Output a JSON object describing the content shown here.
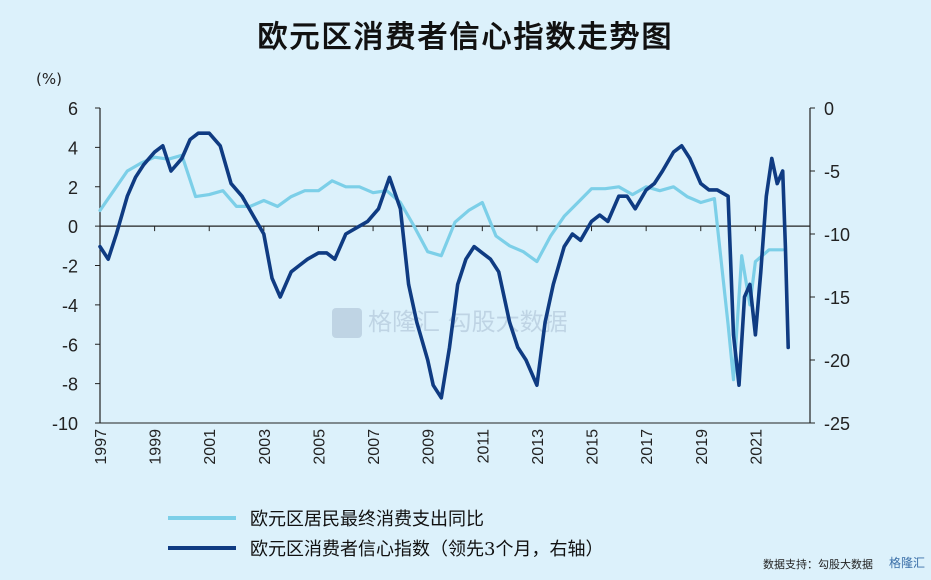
{
  "title": "欧元区消费者信心指数走势图",
  "watermark": "格隆汇   勾股大数据",
  "footer": {
    "source": "数据支持：勾股大数据",
    "corner": "格隆汇"
  },
  "chart_data": {
    "type": "line",
    "unit_left": "(%)",
    "x_ticks": [
      "1997",
      "1999",
      "2001",
      "2003",
      "2005",
      "2007",
      "2009",
      "2011",
      "2013",
      "2015",
      "2017",
      "2019",
      "2021"
    ],
    "y_left": {
      "range": [
        -10,
        6
      ],
      "ticks": [
        "6",
        "4",
        "2",
        "0",
        "-2",
        "-4",
        "-6",
        "-8",
        "-10"
      ]
    },
    "y_right": {
      "range": [
        -25,
        0
      ],
      "ticks": [
        "0",
        "-5",
        "-10",
        "-15",
        "-20",
        "-25"
      ]
    },
    "series": [
      {
        "name": "欧元区居民最终消费支出同比",
        "axis": "left",
        "color": "#7ccfe8",
        "x": [
          1997.0,
          1997.5,
          1998.0,
          1998.5,
          1999.0,
          1999.5,
          2000.0,
          2000.5,
          2001.0,
          2001.5,
          2002.0,
          2002.5,
          2003.0,
          2003.5,
          2004.0,
          2004.5,
          2005.0,
          2005.5,
          2006.0,
          2006.5,
          2007.0,
          2007.5,
          2008.0,
          2008.5,
          2009.0,
          2009.5,
          2010.0,
          2010.5,
          2011.0,
          2011.5,
          2012.0,
          2012.5,
          2013.0,
          2013.5,
          2014.0,
          2014.5,
          2015.0,
          2015.5,
          2016.0,
          2016.5,
          2017.0,
          2017.5,
          2018.0,
          2018.5,
          2019.0,
          2019.5,
          2020.0,
          2020.2,
          2020.5,
          2020.8,
          2021.0,
          2021.5,
          2022.0
        ],
        "values": [
          0.8,
          1.8,
          2.8,
          3.2,
          3.5,
          3.4,
          3.6,
          1.5,
          1.6,
          1.8,
          1.0,
          1.0,
          1.3,
          1.0,
          1.5,
          1.8,
          1.8,
          2.3,
          2.0,
          2.0,
          1.7,
          1.8,
          1.2,
          0.0,
          -1.3,
          -1.5,
          0.2,
          0.8,
          1.2,
          -0.5,
          -1.0,
          -1.3,
          -1.8,
          -0.5,
          0.5,
          1.2,
          1.9,
          1.9,
          2.0,
          1.6,
          2.0,
          1.8,
          2.0,
          1.5,
          1.2,
          1.4,
          -5.0,
          -7.8,
          -1.5,
          -4.0,
          -1.8,
          -1.2,
          -1.2
        ]
      },
      {
        "name": "欧元区消费者信心指数（领先3个月，右轴）",
        "axis": "right",
        "color": "#0f3b82",
        "x": [
          1997.0,
          1997.3,
          1997.6,
          1998.0,
          1998.3,
          1998.6,
          1999.0,
          1999.3,
          1999.6,
          2000.0,
          2000.3,
          2000.6,
          2001.0,
          2001.4,
          2001.8,
          2002.2,
          2002.6,
          2003.0,
          2003.3,
          2003.6,
          2004.0,
          2004.3,
          2004.6,
          2005.0,
          2005.3,
          2005.6,
          2006.0,
          2006.4,
          2006.8,
          2007.2,
          2007.6,
          2008.0,
          2008.3,
          2008.6,
          2009.0,
          2009.2,
          2009.5,
          2009.8,
          2010.1,
          2010.4,
          2010.7,
          2011.0,
          2011.3,
          2011.6,
          2012.0,
          2012.3,
          2012.6,
          2013.0,
          2013.3,
          2013.6,
          2014.0,
          2014.3,
          2014.6,
          2015.0,
          2015.3,
          2015.6,
          2016.0,
          2016.3,
          2016.6,
          2017.0,
          2017.3,
          2017.6,
          2018.0,
          2018.3,
          2018.6,
          2019.0,
          2019.3,
          2019.6,
          2020.0,
          2020.2,
          2020.4,
          2020.6,
          2020.8,
          2021.0,
          2021.2,
          2021.4,
          2021.6,
          2021.8,
          2022.0,
          2022.1,
          2022.2
        ],
        "values": [
          -11,
          -12,
          -10,
          -7,
          -5.5,
          -4.5,
          -3.5,
          -3,
          -5,
          -4,
          -2.5,
          -2,
          -2,
          -3,
          -6,
          -7,
          -8.5,
          -10,
          -13.5,
          -15,
          -13,
          -12.5,
          -12,
          -11.5,
          -11.5,
          -12,
          -10,
          -9.5,
          -9,
          -8,
          -5.5,
          -8,
          -14,
          -17,
          -20,
          -22,
          -23,
          -19,
          -14,
          -12,
          -11,
          -11.5,
          -12,
          -13,
          -17,
          -19,
          -20,
          -22,
          -17,
          -14,
          -11,
          -10,
          -10.5,
          -9,
          -8.5,
          -9,
          -7,
          -7,
          -8,
          -6.5,
          -6,
          -5,
          -3.5,
          -3,
          -4,
          -6,
          -6.5,
          -6.5,
          -7,
          -18,
          -22,
          -15,
          -14,
          -18,
          -13,
          -7,
          -4,
          -6,
          -5,
          -11,
          -19
        ]
      }
    ]
  }
}
